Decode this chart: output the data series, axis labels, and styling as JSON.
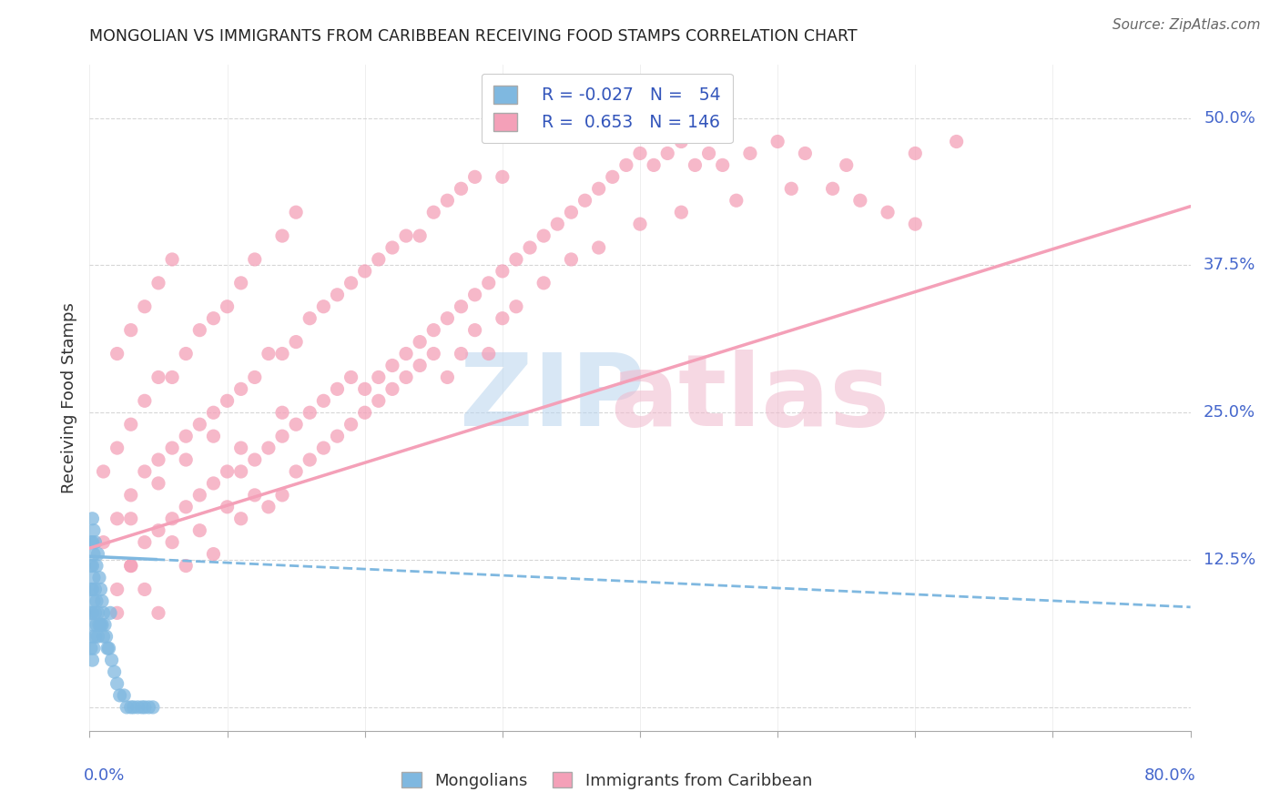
{
  "title": "MONGOLIAN VS IMMIGRANTS FROM CARIBBEAN RECEIVING FOOD STAMPS CORRELATION CHART",
  "source": "Source: ZipAtlas.com",
  "ylabel": "Receiving Food Stamps",
  "yticks": [
    0.0,
    0.125,
    0.25,
    0.375,
    0.5
  ],
  "ytick_labels": [
    "",
    "12.5%",
    "25.0%",
    "37.5%",
    "50.0%"
  ],
  "xlim": [
    0.0,
    0.8
  ],
  "ylim": [
    -0.02,
    0.545
  ],
  "legend_r1": "R = -0.027",
  "legend_n1": "N =  54",
  "legend_r2": "R =  0.653",
  "legend_n2": "N = 146",
  "blue_color": "#7fb8e0",
  "pink_color": "#f4a0b8",
  "title_color": "#222222",
  "mongolian_x": [
    0.001,
    0.001,
    0.001,
    0.001,
    0.001,
    0.002,
    0.002,
    0.002,
    0.002,
    0.002,
    0.002,
    0.002,
    0.003,
    0.003,
    0.003,
    0.003,
    0.003,
    0.003,
    0.004,
    0.004,
    0.004,
    0.004,
    0.005,
    0.005,
    0.005,
    0.006,
    0.006,
    0.006,
    0.007,
    0.007,
    0.008,
    0.008,
    0.009,
    0.009,
    0.01,
    0.01,
    0.011,
    0.012,
    0.013,
    0.014,
    0.015,
    0.016,
    0.018,
    0.02,
    0.022,
    0.025,
    0.027,
    0.03,
    0.032,
    0.035,
    0.038,
    0.04,
    0.043,
    0.046
  ],
  "mongolian_y": [
    0.05,
    0.08,
    0.1,
    0.12,
    0.14,
    0.04,
    0.06,
    0.08,
    0.1,
    0.12,
    0.14,
    0.16,
    0.05,
    0.07,
    0.09,
    0.11,
    0.13,
    0.15,
    0.06,
    0.08,
    0.1,
    0.14,
    0.07,
    0.09,
    0.12,
    0.06,
    0.08,
    0.13,
    0.07,
    0.11,
    0.07,
    0.1,
    0.07,
    0.09,
    0.06,
    0.08,
    0.07,
    0.06,
    0.05,
    0.05,
    0.08,
    0.04,
    0.03,
    0.02,
    0.01,
    0.01,
    0.0,
    0.0,
    0.0,
    0.0,
    0.0,
    0.0,
    0.0,
    0.0
  ],
  "mongolian_trend_x": [
    0.0,
    0.8
  ],
  "mongolian_trend_y": [
    0.128,
    0.085
  ],
  "caribbean_trend_x": [
    0.0,
    0.8
  ],
  "caribbean_trend_y": [
    0.135,
    0.425
  ],
  "caribbean_x": [
    0.01,
    0.01,
    0.02,
    0.02,
    0.02,
    0.02,
    0.03,
    0.03,
    0.03,
    0.03,
    0.04,
    0.04,
    0.04,
    0.04,
    0.05,
    0.05,
    0.05,
    0.05,
    0.06,
    0.06,
    0.06,
    0.06,
    0.07,
    0.07,
    0.07,
    0.08,
    0.08,
    0.08,
    0.09,
    0.09,
    0.09,
    0.1,
    0.1,
    0.1,
    0.11,
    0.11,
    0.11,
    0.12,
    0.12,
    0.12,
    0.13,
    0.13,
    0.14,
    0.14,
    0.14,
    0.15,
    0.15,
    0.15,
    0.16,
    0.16,
    0.17,
    0.17,
    0.18,
    0.18,
    0.19,
    0.19,
    0.2,
    0.2,
    0.21,
    0.21,
    0.22,
    0.22,
    0.23,
    0.23,
    0.24,
    0.24,
    0.25,
    0.25,
    0.26,
    0.26,
    0.27,
    0.27,
    0.28,
    0.28,
    0.29,
    0.3,
    0.3,
    0.31,
    0.32,
    0.33,
    0.34,
    0.35,
    0.36,
    0.37,
    0.38,
    0.39,
    0.4,
    0.41,
    0.42,
    0.43,
    0.44,
    0.45,
    0.46,
    0.48,
    0.5,
    0.52,
    0.54,
    0.56,
    0.58,
    0.6,
    0.02,
    0.03,
    0.04,
    0.05,
    0.06,
    0.07,
    0.08,
    0.09,
    0.1,
    0.11,
    0.12,
    0.13,
    0.14,
    0.15,
    0.16,
    0.17,
    0.18,
    0.19,
    0.2,
    0.21,
    0.22,
    0.23,
    0.24,
    0.25,
    0.26,
    0.27,
    0.28,
    0.29,
    0.3,
    0.31,
    0.33,
    0.35,
    0.37,
    0.4,
    0.43,
    0.47,
    0.51,
    0.55,
    0.6,
    0.63,
    0.03,
    0.05,
    0.07,
    0.09,
    0.11,
    0.14
  ],
  "caribbean_y": [
    0.14,
    0.2,
    0.1,
    0.16,
    0.22,
    0.3,
    0.12,
    0.18,
    0.24,
    0.32,
    0.14,
    0.2,
    0.26,
    0.34,
    0.15,
    0.21,
    0.28,
    0.36,
    0.16,
    0.22,
    0.28,
    0.38,
    0.17,
    0.23,
    0.3,
    0.18,
    0.24,
    0.32,
    0.19,
    0.25,
    0.33,
    0.2,
    0.26,
    0.34,
    0.2,
    0.27,
    0.36,
    0.21,
    0.28,
    0.38,
    0.22,
    0.3,
    0.23,
    0.3,
    0.4,
    0.24,
    0.31,
    0.42,
    0.25,
    0.33,
    0.26,
    0.34,
    0.27,
    0.35,
    0.28,
    0.36,
    0.27,
    0.37,
    0.28,
    0.38,
    0.29,
    0.39,
    0.3,
    0.4,
    0.31,
    0.4,
    0.32,
    0.42,
    0.33,
    0.43,
    0.34,
    0.44,
    0.35,
    0.45,
    0.36,
    0.37,
    0.45,
    0.38,
    0.39,
    0.4,
    0.41,
    0.42,
    0.43,
    0.44,
    0.45,
    0.46,
    0.47,
    0.46,
    0.47,
    0.48,
    0.46,
    0.47,
    0.46,
    0.47,
    0.48,
    0.47,
    0.44,
    0.43,
    0.42,
    0.41,
    0.08,
    0.12,
    0.1,
    0.08,
    0.14,
    0.12,
    0.15,
    0.13,
    0.17,
    0.16,
    0.18,
    0.17,
    0.18,
    0.2,
    0.21,
    0.22,
    0.23,
    0.24,
    0.25,
    0.26,
    0.27,
    0.28,
    0.29,
    0.3,
    0.28,
    0.3,
    0.32,
    0.3,
    0.33,
    0.34,
    0.36,
    0.38,
    0.39,
    0.41,
    0.42,
    0.43,
    0.44,
    0.46,
    0.47,
    0.48,
    0.16,
    0.19,
    0.21,
    0.23,
    0.22,
    0.25
  ]
}
